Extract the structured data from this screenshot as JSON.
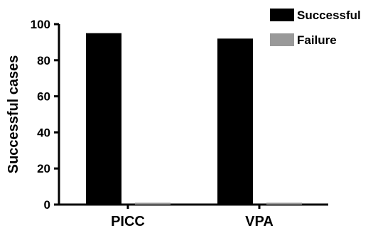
{
  "chart_data": {
    "type": "bar",
    "categories": [
      "PICC",
      "VPA"
    ],
    "series": [
      {
        "name": "Successful",
        "values": [
          95,
          92
        ],
        "color": "#000000"
      },
      {
        "name": "Failure",
        "values": [
          1,
          1
        ],
        "color": "#999999"
      }
    ],
    "ylabel": "Successful cases",
    "xlabel": "",
    "ylim": [
      0,
      100
    ],
    "yticks": [
      0,
      20,
      40,
      60,
      80,
      100
    ],
    "legend_position": "top-right",
    "grid": false
  }
}
